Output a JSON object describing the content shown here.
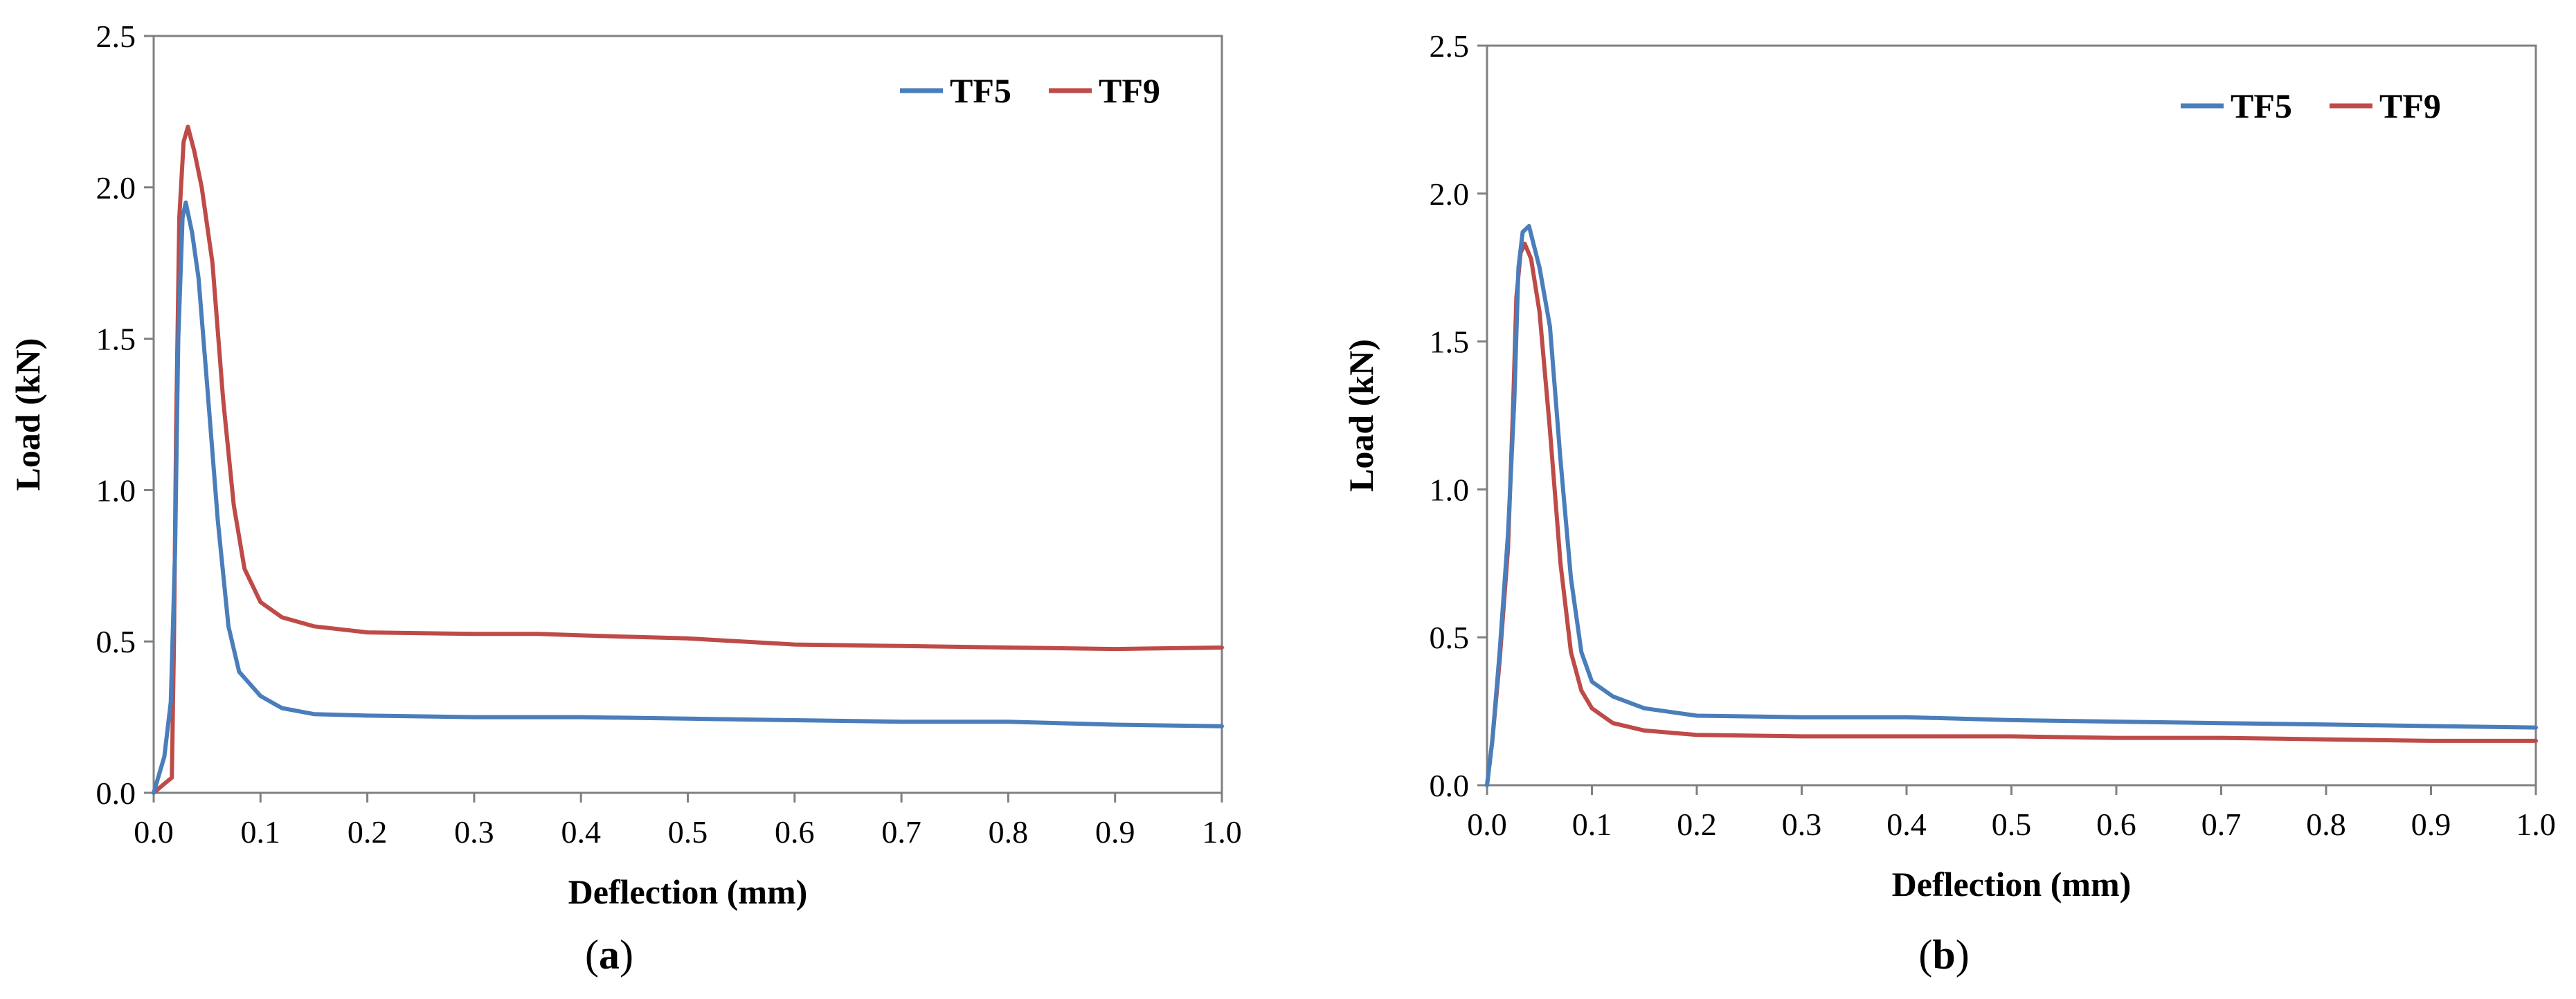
{
  "chart_data": [
    {
      "type": "line",
      "panel_label": "a",
      "xlabel": "Deflection (mm)",
      "ylabel": "Load (kN)",
      "xlim": [
        0,
        1.0
      ],
      "ylim": [
        0,
        2.5
      ],
      "x_ticks": [
        "0.0",
        "0.1",
        "0.2",
        "0.3",
        "0.4",
        "0.5",
        "0.6",
        "0.7",
        "0.8",
        "0.9",
        "1.0"
      ],
      "y_ticks": [
        "0.0",
        "0.5",
        "1.0",
        "1.5",
        "2.0",
        "2.5"
      ],
      "legend_position": "top-right",
      "series": [
        {
          "name": "TF5",
          "color": "#4a7ebb",
          "points": [
            [
              0,
              0
            ],
            [
              0.01,
              0.12
            ],
            [
              0.016,
              0.3
            ],
            [
              0.02,
              0.8
            ],
            [
              0.023,
              1.5
            ],
            [
              0.027,
              1.9
            ],
            [
              0.03,
              1.95
            ],
            [
              0.036,
              1.85
            ],
            [
              0.042,
              1.7
            ],
            [
              0.05,
              1.35
            ],
            [
              0.06,
              0.9
            ],
            [
              0.07,
              0.55
            ],
            [
              0.08,
              0.4
            ],
            [
              0.1,
              0.32
            ],
            [
              0.12,
              0.28
            ],
            [
              0.15,
              0.26
            ],
            [
              0.2,
              0.255
            ],
            [
              0.3,
              0.25
            ],
            [
              0.4,
              0.25
            ],
            [
              0.5,
              0.245
            ],
            [
              0.6,
              0.24
            ],
            [
              0.7,
              0.235
            ],
            [
              0.8,
              0.235
            ],
            [
              0.9,
              0.225
            ],
            [
              1.0,
              0.22
            ]
          ]
        },
        {
          "name": "TF9",
          "color": "#be4b48",
          "points": [
            [
              0,
              0
            ],
            [
              0.01,
              0.03
            ],
            [
              0.017,
              0.05
            ],
            [
              0.019,
              0.5
            ],
            [
              0.021,
              1.2
            ],
            [
              0.024,
              1.9
            ],
            [
              0.028,
              2.15
            ],
            [
              0.032,
              2.2
            ],
            [
              0.038,
              2.12
            ],
            [
              0.045,
              2.0
            ],
            [
              0.055,
              1.75
            ],
            [
              0.065,
              1.3
            ],
            [
              0.075,
              0.95
            ],
            [
              0.085,
              0.74
            ],
            [
              0.1,
              0.63
            ],
            [
              0.12,
              0.58
            ],
            [
              0.15,
              0.55
            ],
            [
              0.2,
              0.53
            ],
            [
              0.3,
              0.525
            ],
            [
              0.36,
              0.525
            ],
            [
              0.4,
              0.52
            ],
            [
              0.5,
              0.51
            ],
            [
              0.6,
              0.49
            ],
            [
              0.7,
              0.485
            ],
            [
              0.8,
              0.48
            ],
            [
              0.9,
              0.475
            ],
            [
              1.0,
              0.48
            ]
          ]
        }
      ]
    },
    {
      "type": "line",
      "panel_label": "b",
      "xlabel": "Deflection (mm)",
      "ylabel": "Load (kN)",
      "xlim": [
        0,
        1.0
      ],
      "ylim": [
        0,
        2.5
      ],
      "x_ticks": [
        "0.0",
        "0.1",
        "0.2",
        "0.3",
        "0.4",
        "0.5",
        "0.6",
        "0.7",
        "0.8",
        "0.9",
        "1.0"
      ],
      "y_ticks": [
        "0.0",
        "0.5",
        "1.0",
        "1.5",
        "2.0",
        "2.5"
      ],
      "legend_position": "top-right",
      "series": [
        {
          "name": "TF5",
          "color": "#4a7ebb",
          "points": [
            [
              0,
              0
            ],
            [
              0.005,
              0.15
            ],
            [
              0.012,
              0.45
            ],
            [
              0.02,
              0.85
            ],
            [
              0.026,
              1.3
            ],
            [
              0.03,
              1.75
            ],
            [
              0.034,
              1.87
            ],
            [
              0.04,
              1.89
            ],
            [
              0.05,
              1.75
            ],
            [
              0.06,
              1.55
            ],
            [
              0.07,
              1.1
            ],
            [
              0.08,
              0.7
            ],
            [
              0.09,
              0.45
            ],
            [
              0.1,
              0.35
            ],
            [
              0.12,
              0.3
            ],
            [
              0.15,
              0.26
            ],
            [
              0.2,
              0.235
            ],
            [
              0.3,
              0.23
            ],
            [
              0.4,
              0.23
            ],
            [
              0.5,
              0.22
            ],
            [
              0.6,
              0.215
            ],
            [
              0.7,
              0.21
            ],
            [
              0.8,
              0.205
            ],
            [
              0.9,
              0.2
            ],
            [
              1.0,
              0.195
            ]
          ]
        },
        {
          "name": "TF9",
          "color": "#be4b48",
          "points": [
            [
              0,
              0
            ],
            [
              0.005,
              0.15
            ],
            [
              0.012,
              0.42
            ],
            [
              0.02,
              0.8
            ],
            [
              0.025,
              1.3
            ],
            [
              0.028,
              1.65
            ],
            [
              0.032,
              1.8
            ],
            [
              0.036,
              1.83
            ],
            [
              0.042,
              1.78
            ],
            [
              0.05,
              1.6
            ],
            [
              0.06,
              1.2
            ],
            [
              0.07,
              0.75
            ],
            [
              0.08,
              0.45
            ],
            [
              0.09,
              0.32
            ],
            [
              0.1,
              0.26
            ],
            [
              0.12,
              0.21
            ],
            [
              0.15,
              0.185
            ],
            [
              0.2,
              0.17
            ],
            [
              0.3,
              0.165
            ],
            [
              0.4,
              0.165
            ],
            [
              0.5,
              0.165
            ],
            [
              0.6,
              0.16
            ],
            [
              0.7,
              0.16
            ],
            [
              0.8,
              0.155
            ],
            [
              0.9,
              0.15
            ],
            [
              1.0,
              0.15
            ]
          ]
        }
      ]
    }
  ]
}
